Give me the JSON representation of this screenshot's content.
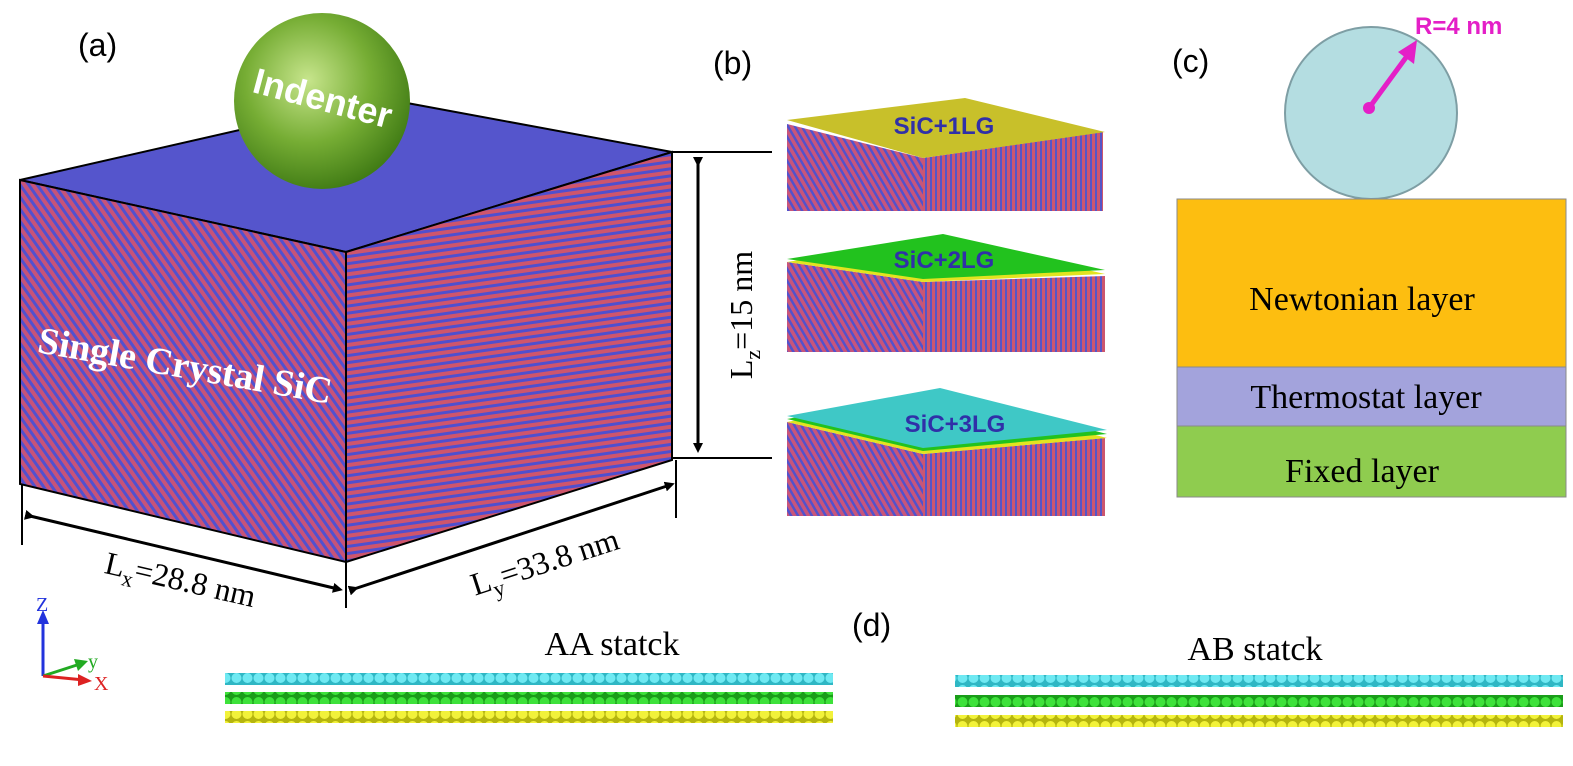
{
  "panel_a": {
    "label": "(a)",
    "indenter_label": "Indenter",
    "crystal_label": "Single Crystal SiC",
    "lx_label": "L",
    "lx_sub": "x",
    "lx_value": "=28.8 nm",
    "ly_label": "L",
    "ly_sub": "y",
    "ly_value": "=33.8 nm",
    "lz_label": "L",
    "lz_sub": "z",
    "lz_value": "=15 nm",
    "axes": {
      "z": "Z",
      "y": "y",
      "x": "X"
    }
  },
  "panel_b": {
    "label": "(b)",
    "samples": [
      {
        "label": "SiC+1LG",
        "top_color": "#c8c02a"
      },
      {
        "label": "SiC+2LG",
        "top_color": "#22c21e"
      },
      {
        "label": "SiC+3LG",
        "top_color": "#3fc8c6"
      }
    ]
  },
  "panel_c": {
    "label": "(c)",
    "radius_label": "R=4 nm",
    "layers": [
      {
        "label": "Newtonian layer",
        "color": "#fdbe10"
      },
      {
        "label": "Thermostat layer",
        "color": "#a3a3dc"
      },
      {
        "label": "Fixed layer",
        "color": "#8fcc4f"
      }
    ]
  },
  "panel_d": {
    "label": "(d)",
    "stacks": [
      {
        "label": "AA statck"
      },
      {
        "label": "AB statck"
      }
    ]
  },
  "colors": {
    "top_face": "#5454cc",
    "crystal_red": "#d1566e",
    "crystal_blue": "#4e4ed0",
    "indenter": "#5e9a28",
    "accent": "#e41fc7",
    "layer_cyan": "#54e2ee",
    "layer_green": "#27d32a",
    "layer_yellow": "#e9e91f"
  }
}
